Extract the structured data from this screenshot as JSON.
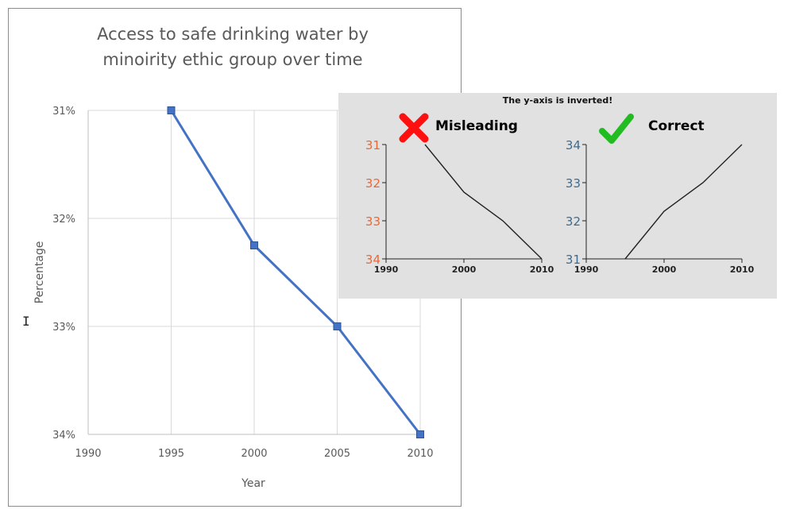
{
  "main": {
    "title_line1": "Access to safe drinking water by",
    "title_line2": "minoirity ethic group over time",
    "cursor_glyph": "I"
  },
  "chart_data": [
    {
      "type": "line",
      "title": "Access to safe drinking water by minoirity ethic group over time",
      "xlabel": "Year",
      "ylabel": "Percentage",
      "x": [
        1995,
        2000,
        2005,
        2010
      ],
      "series": [
        {
          "values": [
            31,
            32.25,
            33,
            34
          ]
        }
      ],
      "xlim": [
        1990,
        2010
      ],
      "ylim": [
        31,
        34
      ],
      "y_inverted": true,
      "x_ticks": [
        "1990",
        "1995",
        "2000",
        "2005",
        "2010"
      ],
      "y_ticks": [
        "31%",
        "32%",
        "33%",
        "34%"
      ],
      "y_tick_values": [
        31,
        32,
        33,
        34
      ],
      "grid": true,
      "line_color": "#4472c4"
    },
    {
      "type": "line",
      "panel_title": "The y-axis is inverted!",
      "label": "Misleading",
      "x": [
        1995,
        2000,
        2005,
        2010
      ],
      "series": [
        {
          "values": [
            31,
            32.25,
            33,
            34
          ]
        }
      ],
      "xlim": [
        1990,
        2010
      ],
      "ylim": [
        31,
        34
      ],
      "y_inverted": true,
      "x_ticks": [
        "1990",
        "2000",
        "2010"
      ],
      "y_ticks": [
        "31",
        "32",
        "33",
        "34"
      ],
      "y_tick_values": [
        31,
        32,
        33,
        34
      ],
      "accent_color": "#ee6633",
      "icon": "cross-icon"
    },
    {
      "type": "line",
      "label": "Correct",
      "x": [
        1995,
        2000,
        2005,
        2010
      ],
      "series": [
        {
          "values": [
            31,
            32.25,
            33,
            34
          ]
        }
      ],
      "xlim": [
        1990,
        2010
      ],
      "ylim": [
        31,
        34
      ],
      "y_inverted": false,
      "x_ticks": [
        "1990",
        "2000",
        "2010"
      ],
      "y_ticks": [
        "34",
        "33",
        "32",
        "31"
      ],
      "y_tick_values": [
        34,
        33,
        32,
        31
      ],
      "accent_color": "#3d6b8f",
      "icon": "checkmark-icon"
    }
  ]
}
